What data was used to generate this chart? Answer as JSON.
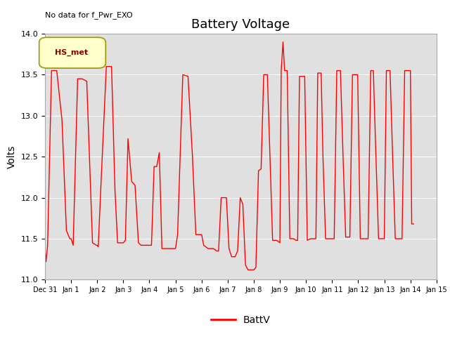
{
  "title": "Battery Voltage",
  "ylabel": "Volts",
  "note": "No data for f_Pwr_EXO",
  "legend_label": "BattV",
  "legend_series": "HS_met",
  "line_color": "red",
  "ylim": [
    11.0,
    14.0
  ],
  "yticks": [
    11.0,
    11.5,
    12.0,
    12.5,
    13.0,
    13.5,
    14.0
  ],
  "xtick_labels": [
    "Dec 31",
    "Jan 1",
    "Jan 2",
    "Jan 3",
    "Jan 4",
    "Jan 5",
    "Jan 6",
    "Jan 7",
    "Jan 8",
    "Jan 9",
    "Jan 10",
    "Jan 11",
    "Jan 12",
    "Jan 13",
    "Jan 14",
    "Jan 15"
  ],
  "background_color": "#e0e0e0",
  "title_fontsize": 13,
  "axis_fontsize": 10,
  "tick_fontsize": 8,
  "data_points": [
    [
      0.0,
      11.38
    ],
    [
      0.04,
      11.22
    ],
    [
      0.1,
      11.42
    ],
    [
      0.25,
      13.55
    ],
    [
      0.45,
      13.55
    ],
    [
      0.65,
      12.95
    ],
    [
      0.82,
      11.6
    ],
    [
      0.95,
      11.5
    ],
    [
      1.0,
      11.5
    ],
    [
      1.08,
      11.42
    ],
    [
      1.25,
      13.45
    ],
    [
      1.42,
      13.45
    ],
    [
      1.6,
      13.42
    ],
    [
      1.82,
      11.45
    ],
    [
      1.97,
      11.42
    ],
    [
      2.0,
      11.42
    ],
    [
      2.04,
      11.4
    ],
    [
      2.15,
      12.2
    ],
    [
      2.35,
      13.6
    ],
    [
      2.55,
      13.6
    ],
    [
      2.68,
      12.1
    ],
    [
      2.78,
      11.45
    ],
    [
      2.97,
      11.45
    ],
    [
      3.0,
      11.45
    ],
    [
      3.08,
      11.48
    ],
    [
      3.18,
      12.72
    ],
    [
      3.32,
      12.2
    ],
    [
      3.45,
      12.15
    ],
    [
      3.58,
      11.45
    ],
    [
      3.68,
      11.42
    ],
    [
      3.92,
      11.42
    ],
    [
      4.0,
      11.42
    ],
    [
      4.08,
      11.42
    ],
    [
      4.18,
      12.38
    ],
    [
      4.28,
      12.38
    ],
    [
      4.38,
      12.55
    ],
    [
      4.48,
      11.38
    ],
    [
      4.58,
      11.38
    ],
    [
      4.82,
      11.38
    ],
    [
      5.0,
      11.38
    ],
    [
      5.08,
      11.55
    ],
    [
      5.28,
      13.5
    ],
    [
      5.48,
      13.48
    ],
    [
      5.65,
      12.5
    ],
    [
      5.78,
      11.55
    ],
    [
      5.92,
      11.55
    ],
    [
      6.0,
      11.55
    ],
    [
      6.08,
      11.42
    ],
    [
      6.25,
      11.38
    ],
    [
      6.45,
      11.38
    ],
    [
      6.58,
      11.35
    ],
    [
      6.65,
      11.35
    ],
    [
      6.75,
      12.0
    ],
    [
      6.95,
      12.0
    ],
    [
      7.05,
      11.38
    ],
    [
      7.15,
      11.28
    ],
    [
      7.28,
      11.28
    ],
    [
      7.38,
      11.35
    ],
    [
      7.48,
      12.0
    ],
    [
      7.58,
      11.92
    ],
    [
      7.68,
      11.18
    ],
    [
      7.78,
      11.12
    ],
    [
      7.85,
      11.12
    ],
    [
      7.92,
      11.12
    ],
    [
      8.0,
      11.12
    ],
    [
      8.08,
      11.15
    ],
    [
      8.18,
      12.33
    ],
    [
      8.28,
      12.35
    ],
    [
      8.38,
      13.5
    ],
    [
      8.52,
      13.5
    ],
    [
      8.62,
      12.5
    ],
    [
      8.72,
      11.48
    ],
    [
      8.88,
      11.48
    ],
    [
      9.0,
      11.45
    ],
    [
      9.05,
      13.55
    ],
    [
      9.12,
      13.9
    ],
    [
      9.18,
      13.55
    ],
    [
      9.28,
      13.55
    ],
    [
      9.38,
      11.5
    ],
    [
      9.52,
      11.5
    ],
    [
      9.62,
      11.48
    ],
    [
      9.68,
      11.48
    ],
    [
      9.75,
      13.48
    ],
    [
      9.88,
      13.48
    ],
    [
      9.95,
      13.48
    ],
    [
      10.05,
      11.48
    ],
    [
      10.18,
      11.5
    ],
    [
      10.28,
      11.5
    ],
    [
      10.38,
      11.5
    ],
    [
      10.45,
      13.52
    ],
    [
      10.58,
      13.52
    ],
    [
      10.65,
      12.5
    ],
    [
      10.75,
      11.5
    ],
    [
      10.88,
      11.5
    ],
    [
      11.0,
      11.5
    ],
    [
      11.08,
      11.5
    ],
    [
      11.18,
      13.55
    ],
    [
      11.32,
      13.55
    ],
    [
      11.42,
      12.5
    ],
    [
      11.52,
      11.52
    ],
    [
      11.62,
      11.52
    ],
    [
      11.68,
      11.52
    ],
    [
      11.78,
      13.5
    ],
    [
      11.92,
      13.5
    ],
    [
      11.98,
      13.5
    ],
    [
      12.08,
      11.5
    ],
    [
      12.18,
      11.5
    ],
    [
      12.28,
      11.5
    ],
    [
      12.38,
      11.5
    ],
    [
      12.48,
      13.55
    ],
    [
      12.58,
      13.55
    ],
    [
      12.68,
      12.5
    ],
    [
      12.78,
      11.5
    ],
    [
      12.92,
      11.5
    ],
    [
      13.0,
      11.5
    ],
    [
      13.08,
      13.55
    ],
    [
      13.22,
      13.55
    ],
    [
      13.32,
      12.5
    ],
    [
      13.42,
      11.5
    ],
    [
      13.52,
      11.5
    ],
    [
      13.62,
      11.5
    ],
    [
      13.68,
      11.5
    ],
    [
      13.78,
      13.55
    ],
    [
      13.92,
      13.55
    ],
    [
      14.0,
      13.55
    ],
    [
      14.05,
      11.68
    ],
    [
      14.12,
      11.68
    ]
  ]
}
